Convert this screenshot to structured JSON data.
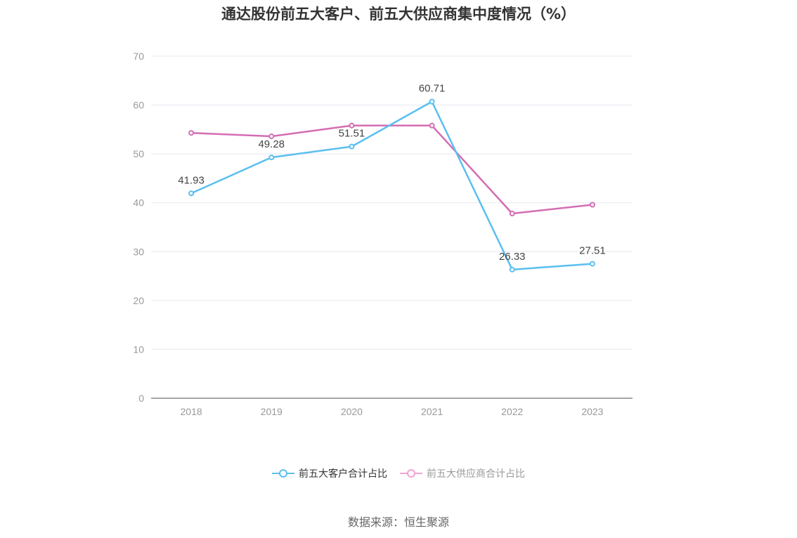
{
  "title": "通达股份前五大客户、前五大供应商集中度情况（%）",
  "source_label": "数据来源：恒生聚源",
  "chart_data": {
    "type": "line",
    "title": "通达股份前五大客户、前五大供应商集中度情况（%）",
    "categories": [
      "2018",
      "2019",
      "2020",
      "2021",
      "2022",
      "2023"
    ],
    "ylim": [
      0,
      70
    ],
    "yticks": [
      0,
      10,
      20,
      30,
      40,
      50,
      60,
      70
    ],
    "grid": true,
    "legend_position": "bottom",
    "series": [
      {
        "name": "前五大客户合计占比",
        "color": "#5bbff0",
        "values": [
          41.93,
          49.28,
          51.51,
          60.71,
          26.33,
          27.51
        ],
        "labels": [
          "41.93",
          "49.28",
          "51.51",
          "60.71",
          "26.33",
          "27.51"
        ]
      },
      {
        "name": "前五大供应商合计占比",
        "color": "#d46db3",
        "legend_color": "#f0a3d3",
        "values": [
          54.3,
          53.6,
          55.8,
          55.8,
          37.8,
          39.6
        ]
      }
    ]
  }
}
